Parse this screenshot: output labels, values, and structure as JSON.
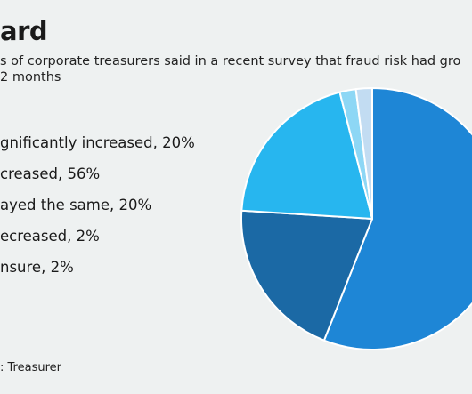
{
  "title": "ard",
  "subtitle_lines": [
    "s of corporate treasurers said in a recent survey that fraud risk had gro",
    "2 months"
  ],
  "source": ": Treasurer",
  "chart_data": {
    "type": "pie",
    "legend_position": "left",
    "legend_labels": [
      "gnificantly increased, 20%",
      "creased, 56%",
      "ayed the same, 20%",
      "ecreased, 2%",
      "nsure, 2%"
    ],
    "slices": [
      {
        "value": 56,
        "color": "#1e86d6"
      },
      {
        "value": 20,
        "color": "#1b69a5"
      },
      {
        "value": 20,
        "color": "#27b6ef"
      },
      {
        "value": 2,
        "color": "#8dd7f5"
      },
      {
        "value": 2,
        "color": "#c2dcf2"
      }
    ]
  }
}
